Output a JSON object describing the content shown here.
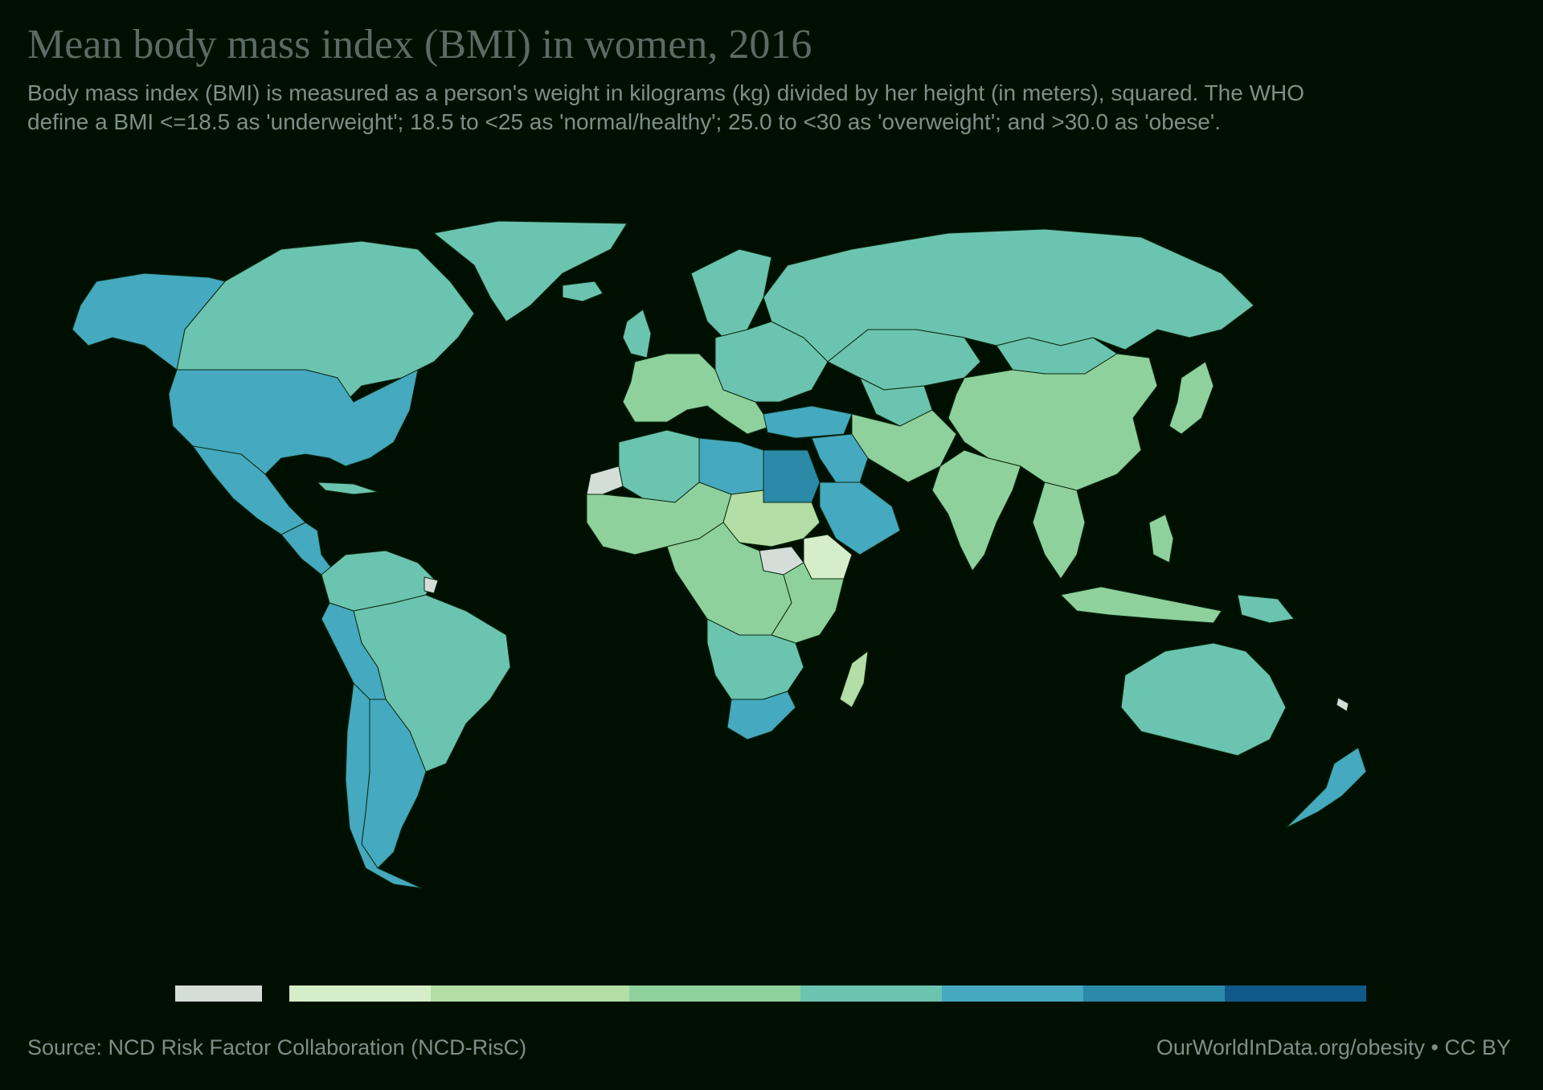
{
  "header": {
    "title": "Mean body mass index (BMI) in women, 2016",
    "subtitle": "Body mass index (BMI) is measured as a person's weight in kilograms (kg) divided by her height (in meters), squared. The WHO define a BMI <=18.5 as 'underweight'; 18.5 to <25 as 'normal/healthy'; 25.0 to <30 as 'overweight'; and >30.0 as 'obese'."
  },
  "footer": {
    "source": "Source: NCD Risk Factor Collaboration (NCD-RisC)",
    "credit": "OurWorldInData.org/obesity • CC BY"
  },
  "colors": {
    "background": "#001000",
    "no_data": "#d5ddd8",
    "bin1": "#d6edc9",
    "bin2": "#b3dea6",
    "bin3": "#8fd19c",
    "bin4": "#6bc4b0",
    "bin5": "#45a9bf",
    "bin6": "#2b8aa8",
    "bin7": "#0f5a8a"
  },
  "legend": {
    "bins": [
      "no_data",
      "bin1",
      "bin2",
      "bin3",
      "bin4",
      "bin5",
      "bin6",
      "bin7"
    ]
  },
  "map_regions": [
    {
      "name": "alaska",
      "fill": "bin5"
    },
    {
      "name": "canada",
      "fill": "bin4"
    },
    {
      "name": "greenland",
      "fill": "bin4"
    },
    {
      "name": "united-states",
      "fill": "bin5"
    },
    {
      "name": "mexico",
      "fill": "bin5"
    },
    {
      "name": "central-america",
      "fill": "bin5"
    },
    {
      "name": "cuba",
      "fill": "bin4"
    },
    {
      "name": "south-america-north",
      "fill": "bin4"
    },
    {
      "name": "brazil",
      "fill": "bin4"
    },
    {
      "name": "bolivia",
      "fill": "bin5"
    },
    {
      "name": "argentina",
      "fill": "bin5"
    },
    {
      "name": "chile",
      "fill": "bin5"
    },
    {
      "name": "french-guiana",
      "fill": "no_data"
    },
    {
      "name": "western-europe",
      "fill": "bin3"
    },
    {
      "name": "eastern-europe",
      "fill": "bin4"
    },
    {
      "name": "scandinavia",
      "fill": "bin4"
    },
    {
      "name": "uk",
      "fill": "bin4"
    },
    {
      "name": "iceland",
      "fill": "bin4"
    },
    {
      "name": "russia",
      "fill": "bin4"
    },
    {
      "name": "turkey",
      "fill": "bin5"
    },
    {
      "name": "western-sahara",
      "fill": "no_data"
    },
    {
      "name": "north-africa-west",
      "fill": "bin4"
    },
    {
      "name": "libya",
      "fill": "bin5"
    },
    {
      "name": "egypt",
      "fill": "bin6"
    },
    {
      "name": "sahel",
      "fill": "bin3"
    },
    {
      "name": "chad-sudan",
      "fill": "bin2"
    },
    {
      "name": "south-sudan",
      "fill": "no_data"
    },
    {
      "name": "ethiopia",
      "fill": "bin1"
    },
    {
      "name": "central-africa",
      "fill": "bin3"
    },
    {
      "name": "east-africa",
      "fill": "bin3"
    },
    {
      "name": "southern-africa",
      "fill": "bin4"
    },
    {
      "name": "south-africa",
      "fill": "bin5"
    },
    {
      "name": "madagascar",
      "fill": "bin2"
    },
    {
      "name": "arabian-peninsula",
      "fill": "bin5"
    },
    {
      "name": "middle-east",
      "fill": "bin5"
    },
    {
      "name": "iran-afghanistan",
      "fill": "bin3"
    },
    {
      "name": "central-asia",
      "fill": "bin4"
    },
    {
      "name": "kazakhstan",
      "fill": "bin4"
    },
    {
      "name": "mongolia",
      "fill": "bin4"
    },
    {
      "name": "china",
      "fill": "bin3"
    },
    {
      "name": "india",
      "fill": "bin3"
    },
    {
      "name": "southeast-asia",
      "fill": "bin3"
    },
    {
      "name": "japan",
      "fill": "bin3"
    },
    {
      "name": "indonesia",
      "fill": "bin3"
    },
    {
      "name": "philippines",
      "fill": "bin3"
    },
    {
      "name": "papua-new-guinea",
      "fill": "bin4"
    },
    {
      "name": "australia",
      "fill": "bin4"
    },
    {
      "name": "new-zealand",
      "fill": "bin5"
    },
    {
      "name": "new-caledonia",
      "fill": "no_data"
    }
  ]
}
